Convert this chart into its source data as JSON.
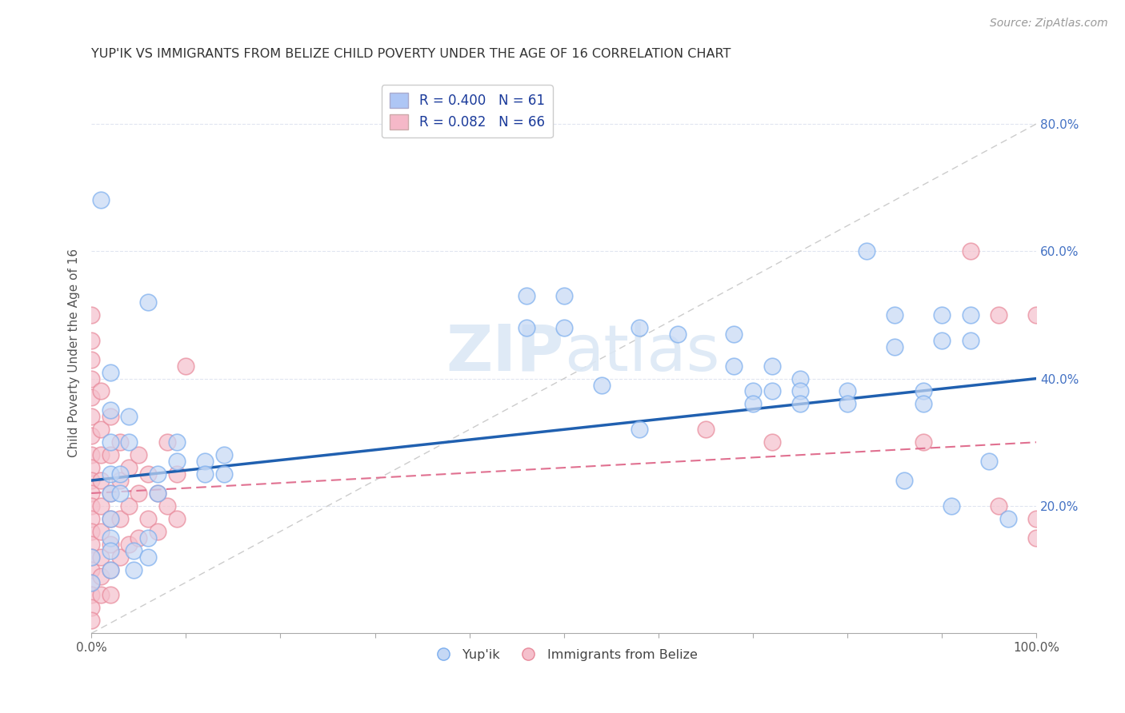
{
  "title": "YUP'IK VS IMMIGRANTS FROM BELIZE CHILD POVERTY UNDER THE AGE OF 16 CORRELATION CHART",
  "source": "Source: ZipAtlas.com",
  "ylabel": "Child Poverty Under the Age of 16",
  "xlim": [
    0,
    1.0
  ],
  "ylim": [
    0,
    0.88
  ],
  "xtick_labels_left": [
    "0.0%"
  ],
  "xtick_labels_right": [
    "100.0%"
  ],
  "ytick_labels": [
    "20.0%",
    "40.0%",
    "60.0%",
    "80.0%"
  ],
  "ytick_vals": [
    0.2,
    0.4,
    0.6,
    0.8
  ],
  "yupik_scatter_color_face": "#c5d8f5",
  "yupik_scatter_color_edge": "#7aadee",
  "belize_scatter_color_face": "#f5c0cc",
  "belize_scatter_color_edge": "#e8899a",
  "yupik_line_color": "#2060b0",
  "belize_line_color": "#e07090",
  "diagonal_color": "#cccccc",
  "legend_yupik_color": "#aec6f5",
  "legend_belize_color": "#f5b8c8",
  "background_color": "#ffffff",
  "grid_color": "#e0e5f0",
  "watermark_color": "#dce8f5",
  "yupik_points": [
    [
      0.01,
      0.68
    ],
    [
      0.06,
      0.52
    ],
    [
      0.09,
      0.3
    ],
    [
      0.09,
      0.27
    ],
    [
      0.12,
      0.27
    ],
    [
      0.12,
      0.25
    ],
    [
      0.14,
      0.28
    ],
    [
      0.14,
      0.25
    ],
    [
      0.02,
      0.41
    ],
    [
      0.02,
      0.35
    ],
    [
      0.02,
      0.3
    ],
    [
      0.02,
      0.25
    ],
    [
      0.02,
      0.22
    ],
    [
      0.02,
      0.18
    ],
    [
      0.02,
      0.15
    ],
    [
      0.02,
      0.13
    ],
    [
      0.02,
      0.1
    ],
    [
      0.03,
      0.25
    ],
    [
      0.03,
      0.22
    ],
    [
      0.04,
      0.34
    ],
    [
      0.04,
      0.3
    ],
    [
      0.045,
      0.13
    ],
    [
      0.045,
      0.1
    ],
    [
      0.06,
      0.15
    ],
    [
      0.06,
      0.12
    ],
    [
      0.07,
      0.25
    ],
    [
      0.07,
      0.22
    ],
    [
      0.0,
      0.08
    ],
    [
      0.0,
      0.12
    ],
    [
      0.46,
      0.53
    ],
    [
      0.46,
      0.48
    ],
    [
      0.5,
      0.53
    ],
    [
      0.5,
      0.48
    ],
    [
      0.54,
      0.39
    ],
    [
      0.58,
      0.48
    ],
    [
      0.58,
      0.32
    ],
    [
      0.62,
      0.47
    ],
    [
      0.68,
      0.47
    ],
    [
      0.68,
      0.42
    ],
    [
      0.7,
      0.38
    ],
    [
      0.7,
      0.36
    ],
    [
      0.72,
      0.42
    ],
    [
      0.72,
      0.38
    ],
    [
      0.75,
      0.4
    ],
    [
      0.75,
      0.38
    ],
    [
      0.75,
      0.36
    ],
    [
      0.8,
      0.38
    ],
    [
      0.8,
      0.36
    ],
    [
      0.82,
      0.6
    ],
    [
      0.85,
      0.5
    ],
    [
      0.85,
      0.45
    ],
    [
      0.86,
      0.24
    ],
    [
      0.88,
      0.38
    ],
    [
      0.88,
      0.36
    ],
    [
      0.9,
      0.5
    ],
    [
      0.9,
      0.46
    ],
    [
      0.91,
      0.2
    ],
    [
      0.93,
      0.5
    ],
    [
      0.93,
      0.46
    ],
    [
      0.95,
      0.27
    ],
    [
      0.97,
      0.18
    ]
  ],
  "belize_points": [
    [
      0.0,
      0.5
    ],
    [
      0.0,
      0.46
    ],
    [
      0.0,
      0.43
    ],
    [
      0.0,
      0.4
    ],
    [
      0.0,
      0.37
    ],
    [
      0.0,
      0.34
    ],
    [
      0.0,
      0.31
    ],
    [
      0.0,
      0.28
    ],
    [
      0.0,
      0.26
    ],
    [
      0.0,
      0.24
    ],
    [
      0.0,
      0.22
    ],
    [
      0.0,
      0.2
    ],
    [
      0.0,
      0.18
    ],
    [
      0.0,
      0.16
    ],
    [
      0.0,
      0.14
    ],
    [
      0.0,
      0.12
    ],
    [
      0.0,
      0.1
    ],
    [
      0.0,
      0.08
    ],
    [
      0.0,
      0.06
    ],
    [
      0.0,
      0.04
    ],
    [
      0.0,
      0.02
    ],
    [
      0.01,
      0.38
    ],
    [
      0.01,
      0.32
    ],
    [
      0.01,
      0.28
    ],
    [
      0.01,
      0.24
    ],
    [
      0.01,
      0.2
    ],
    [
      0.01,
      0.16
    ],
    [
      0.01,
      0.12
    ],
    [
      0.01,
      0.09
    ],
    [
      0.01,
      0.06
    ],
    [
      0.02,
      0.34
    ],
    [
      0.02,
      0.28
    ],
    [
      0.02,
      0.22
    ],
    [
      0.02,
      0.18
    ],
    [
      0.02,
      0.14
    ],
    [
      0.02,
      0.1
    ],
    [
      0.02,
      0.06
    ],
    [
      0.03,
      0.3
    ],
    [
      0.03,
      0.24
    ],
    [
      0.03,
      0.18
    ],
    [
      0.03,
      0.12
    ],
    [
      0.04,
      0.26
    ],
    [
      0.04,
      0.2
    ],
    [
      0.04,
      0.14
    ],
    [
      0.05,
      0.28
    ],
    [
      0.05,
      0.22
    ],
    [
      0.05,
      0.15
    ],
    [
      0.06,
      0.25
    ],
    [
      0.06,
      0.18
    ],
    [
      0.07,
      0.22
    ],
    [
      0.07,
      0.16
    ],
    [
      0.08,
      0.3
    ],
    [
      0.08,
      0.2
    ],
    [
      0.09,
      0.25
    ],
    [
      0.09,
      0.18
    ],
    [
      0.1,
      0.42
    ],
    [
      0.65,
      0.32
    ],
    [
      0.72,
      0.3
    ],
    [
      0.88,
      0.3
    ],
    [
      0.93,
      0.6
    ],
    [
      0.96,
      0.5
    ],
    [
      0.96,
      0.2
    ],
    [
      1.0,
      0.5
    ],
    [
      1.0,
      0.18
    ],
    [
      1.0,
      0.15
    ]
  ],
  "yupik_trendline": [
    0.0,
    0.24,
    1.0,
    0.4
  ],
  "belize_trendline": [
    0.0,
    0.22,
    1.0,
    0.3
  ]
}
